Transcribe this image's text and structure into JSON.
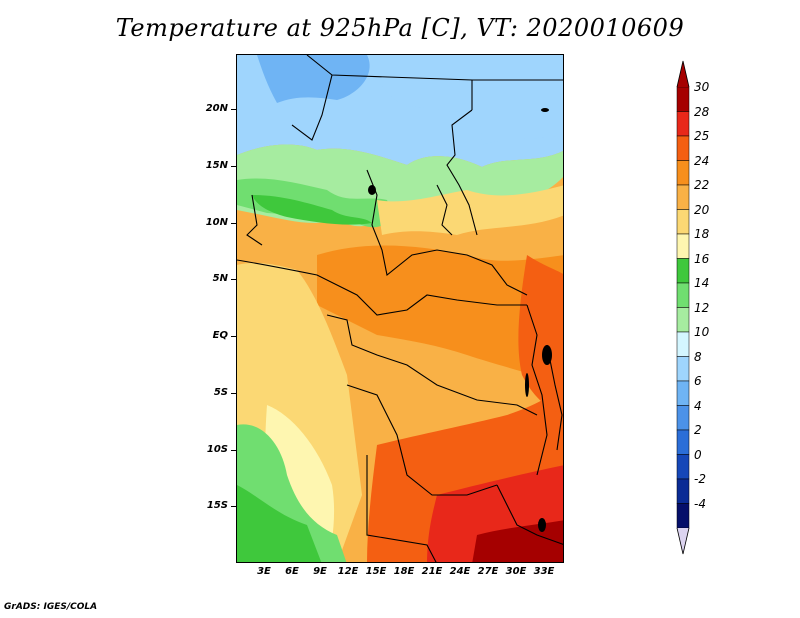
{
  "title": "Temperature at 925hPa [C], VT: 2020010609",
  "footer": "GrADS: IGES/COLA",
  "axes": {
    "lat_labels": [
      "20N",
      "15N",
      "10N",
      "5N",
      "EQ",
      "5S",
      "10S",
      "15S"
    ],
    "lon_labels": [
      "3E",
      "6E",
      "9E",
      "12E",
      "15E",
      "18E",
      "21E",
      "24E",
      "27E",
      "30E",
      "33E"
    ]
  },
  "colorbar": {
    "labels": [
      "30",
      "28",
      "25",
      "24",
      "22",
      "20",
      "18",
      "16",
      "14",
      "12",
      "10",
      "8",
      "6",
      "4",
      "2",
      "0",
      "-2",
      "-4"
    ],
    "colors": [
      "#a50000",
      "#e8281a",
      "#f45f12",
      "#f78f1c",
      "#f9b146",
      "#fbd874",
      "#fef6b0",
      "#3fc83c",
      "#70de70",
      "#a6eca0",
      "#d4f6ff",
      "#9fd5fd",
      "#6fb4f4",
      "#4c92e8",
      "#2b6ed8",
      "#1547b8",
      "#0a2b95",
      "#050f6a"
    ]
  },
  "regions": [
    {
      "name": "north-sahara",
      "color": "#9fd5fd"
    },
    {
      "name": "sahel-green",
      "color": "#70de70"
    },
    {
      "name": "central-orange",
      "color": "#f9b146"
    },
    {
      "name": "south-hot",
      "color": "#e8281a"
    },
    {
      "name": "atlantic-coast",
      "color": "#fbd874"
    },
    {
      "name": "angola-green",
      "color": "#3fc83c"
    }
  ]
}
